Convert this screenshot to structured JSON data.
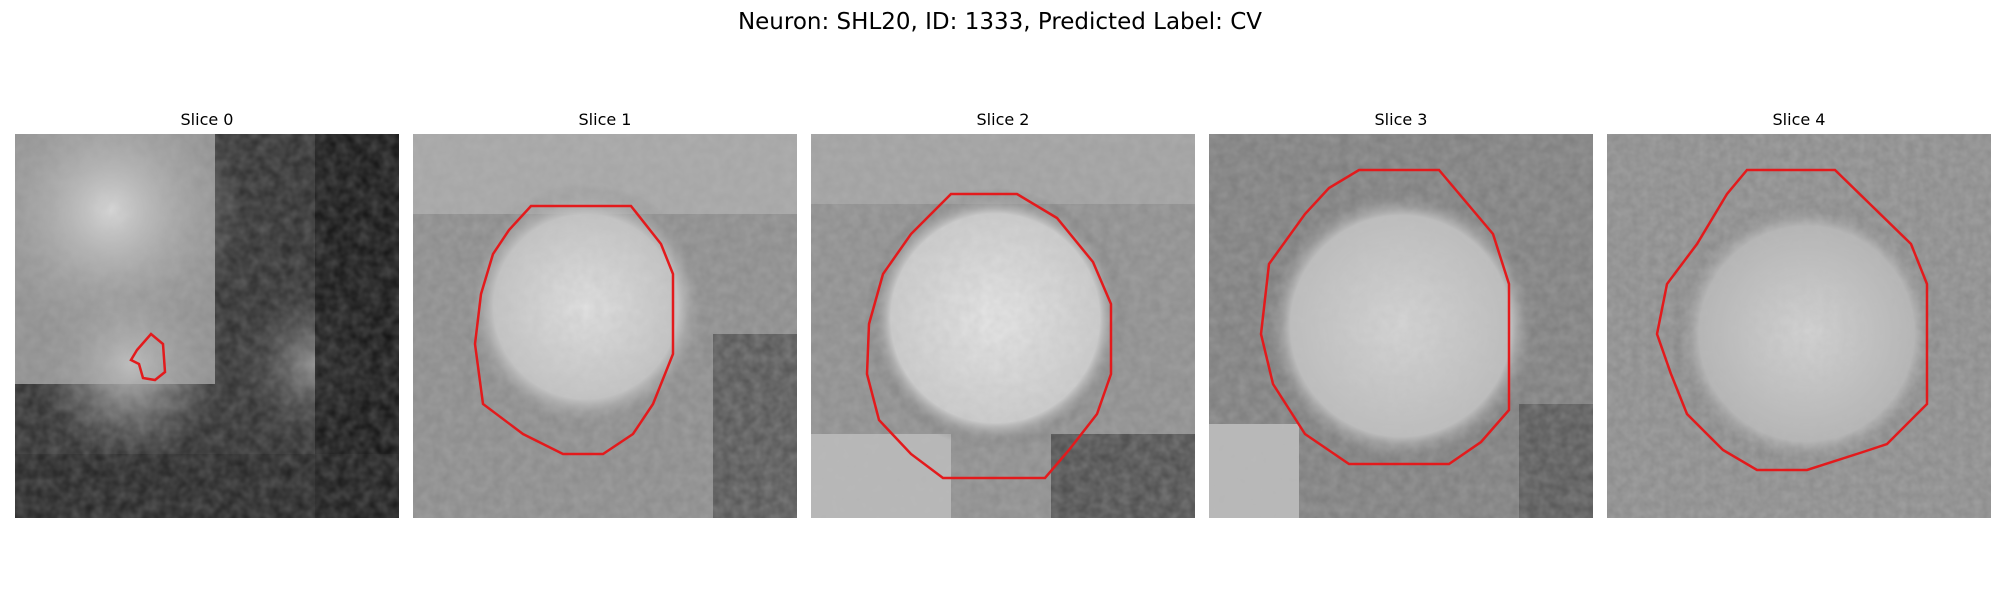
{
  "figure": {
    "title": "Neuron: SHL20, ID: 1333, Predicted Label: CV"
  },
  "panels": [
    {
      "title": "Slice 0"
    },
    {
      "title": "Slice 1"
    },
    {
      "title": "Slice 2"
    },
    {
      "title": "Slice 3"
    },
    {
      "title": "Slice 4"
    }
  ],
  "colors": {
    "contour": "#e31a1c",
    "colormap": "grayscale"
  }
}
